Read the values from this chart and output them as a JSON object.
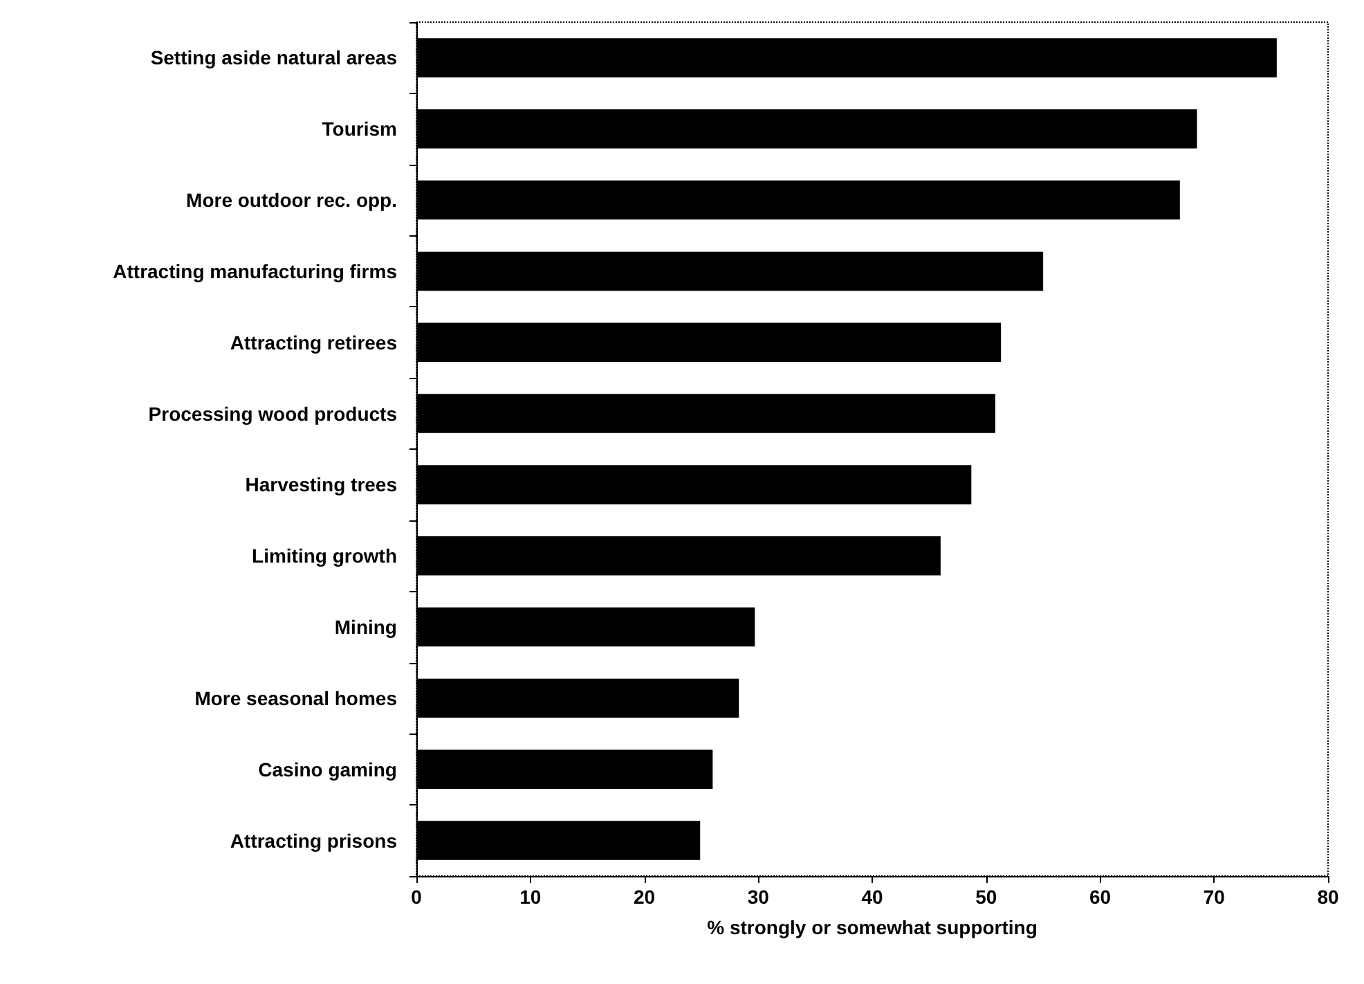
{
  "chart_data": {
    "type": "bar",
    "orientation": "horizontal",
    "xlabel": "% strongly or somewhat supporting",
    "categories": [
      "Setting aside natural areas",
      "Tourism",
      "More outdoor rec. opp.",
      "Attracting manufacturing firms",
      "Attracting retirees",
      "Processing wood products",
      "Harvesting trees",
      "Limiting growth",
      "Mining",
      "More seasonal homes",
      "Casino gaming",
      "Attracting prisons"
    ],
    "values": [
      75.5,
      68.5,
      67,
      55,
      51.3,
      50.8,
      48.7,
      46,
      29.7,
      28.3,
      26,
      24.9
    ],
    "color": "#000000",
    "xlim": [
      0,
      80
    ],
    "xticks": [
      0,
      10,
      20,
      30,
      40,
      50,
      60,
      70,
      80
    ],
    "grid": false
  }
}
